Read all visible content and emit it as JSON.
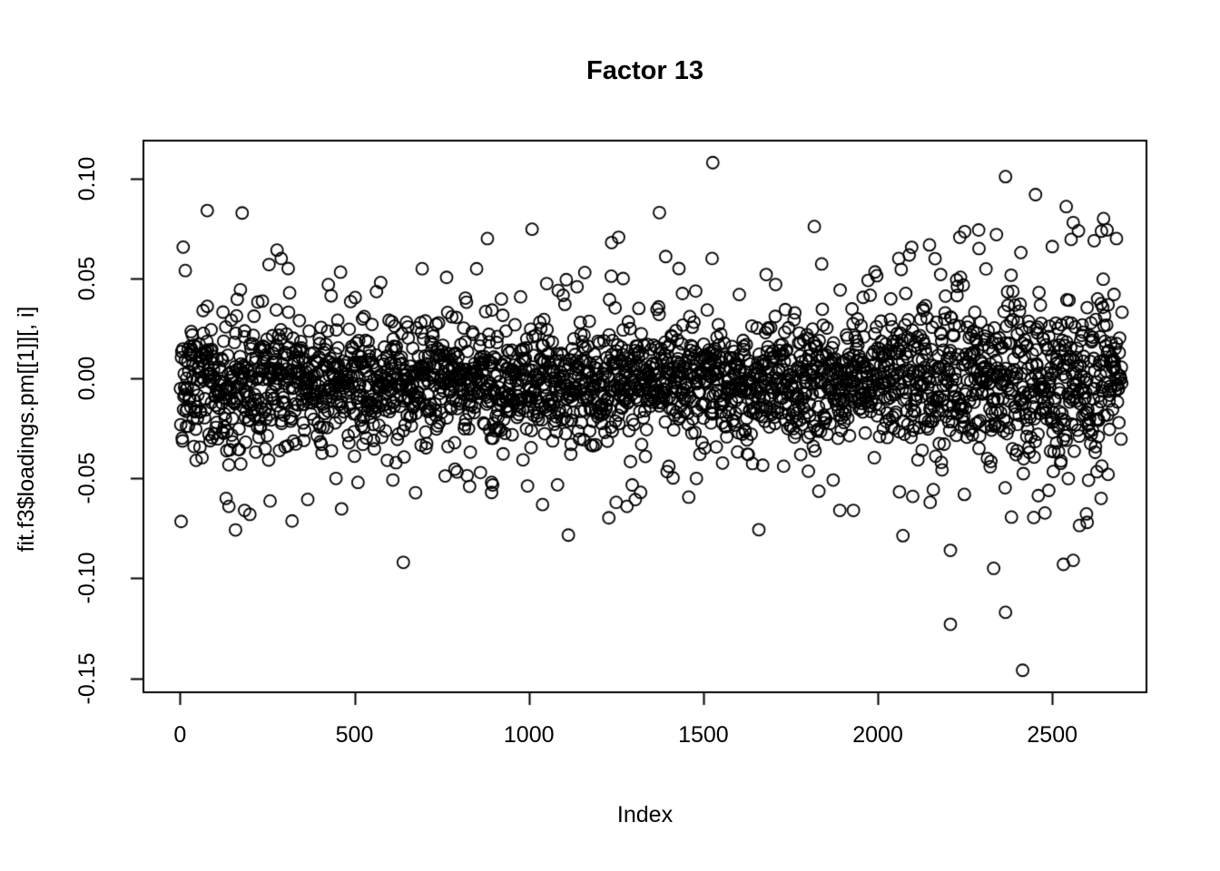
{
  "chart_data": {
    "type": "scatter",
    "title": "Factor 13",
    "xlabel": "Index",
    "ylabel": "fit.f3$loadings.pm[[1]][, i]",
    "marker": "open-circle",
    "point_color": "#000000",
    "background_color": "#ffffff",
    "grid": false,
    "legend": false,
    "xlim": [
      -105,
      2770
    ],
    "ylim": [
      -0.157,
      0.119
    ],
    "x_ticks": [
      {
        "label": "0",
        "value": 0
      },
      {
        "label": "500",
        "value": 500
      },
      {
        "label": "1000",
        "value": 1000
      },
      {
        "label": "1500",
        "value": 1500
      },
      {
        "label": "2000",
        "value": 2000
      },
      {
        "label": "2500",
        "value": 2500
      }
    ],
    "y_ticks": [
      {
        "label": "0.10",
        "value": 0.1
      },
      {
        "label": "0.05",
        "value": 0.05
      },
      {
        "label": "0.00",
        "value": 0.0
      },
      {
        "label": "-0.05",
        "value": -0.05
      },
      {
        "label": "-0.10",
        "value": -0.1
      },
      {
        "label": "-0.15",
        "value": -0.15
      }
    ],
    "n_points": 2700,
    "distribution": {
      "seed": 13,
      "mean": -0.002,
      "core_sd": 0.013,
      "tail_fraction": 0.18,
      "tail_sd": 0.029,
      "max_abs_generated": 0.085,
      "left_region_end": 350,
      "left_region_factor": 1.2,
      "right_region_start": 2050,
      "right_region_factor": 1.5
    },
    "outliers": [
      [
        15,
        0.054
      ],
      [
        78,
        0.084
      ],
      [
        255,
        0.057
      ],
      [
        290,
        0.06
      ],
      [
        310,
        0.055
      ],
      [
        575,
        0.048
      ],
      [
        881,
        0.07
      ],
      [
        1160,
        0.053
      ],
      [
        1237,
        0.068
      ],
      [
        1270,
        0.05
      ],
      [
        1374,
        0.083
      ],
      [
        1392,
        0.061
      ],
      [
        1430,
        0.055
      ],
      [
        1525,
        0.06
      ],
      [
        1527,
        0.108
      ],
      [
        1680,
        0.052
      ],
      [
        1818,
        0.076
      ],
      [
        2060,
        0.06
      ],
      [
        2180,
        0.052
      ],
      [
        2290,
        0.065
      ],
      [
        2340,
        0.072
      ],
      [
        2366,
        0.101
      ],
      [
        2410,
        0.063
      ],
      [
        2452,
        0.092
      ],
      [
        2500,
        0.066
      ],
      [
        2540,
        0.086
      ],
      [
        2560,
        0.078
      ],
      [
        2647,
        0.08
      ],
      [
        2684,
        0.07
      ],
      [
        132,
        -0.06
      ],
      [
        140,
        -0.064
      ],
      [
        185,
        -0.066
      ],
      [
        200,
        -0.068
      ],
      [
        447,
        -0.05
      ],
      [
        510,
        -0.052
      ],
      [
        640,
        -0.092
      ],
      [
        830,
        -0.054
      ],
      [
        893,
        -0.052
      ],
      [
        1250,
        -0.062
      ],
      [
        1281,
        -0.064
      ],
      [
        1320,
        -0.057
      ],
      [
        1480,
        -0.05
      ],
      [
        1891,
        -0.066
      ],
      [
        1930,
        -0.066
      ],
      [
        2100,
        -0.059
      ],
      [
        2150,
        -0.062
      ],
      [
        2208,
        -0.086
      ],
      [
        2208,
        -0.123
      ],
      [
        2248,
        -0.058
      ],
      [
        2332,
        -0.095
      ],
      [
        2366,
        -0.117
      ],
      [
        2415,
        -0.146
      ],
      [
        2490,
        -0.056
      ],
      [
        2532,
        -0.093
      ],
      [
        2560,
        -0.091
      ],
      [
        2600,
        -0.072
      ],
      [
        2640,
        -0.06
      ],
      [
        2660,
        -0.048
      ]
    ]
  }
}
